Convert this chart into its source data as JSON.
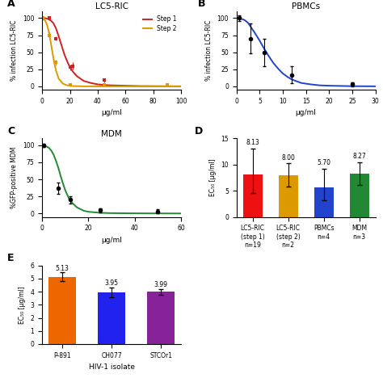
{
  "panel_A": {
    "title": "LC5-RIC",
    "xlabel": "μg/ml",
    "ylabel": "% infection LC5-RIC",
    "xlim": [
      0,
      100
    ],
    "ylim": [
      -5,
      110
    ],
    "xticks": [
      0,
      20,
      40,
      60,
      80,
      100
    ],
    "yticks": [
      0,
      25,
      50,
      75,
      100
    ],
    "step1_color": "#cc2222",
    "step2_color": "#dd9900",
    "step1_data_x": [
      0.5,
      5,
      10,
      20,
      22,
      45,
      90
    ],
    "step1_data_y": [
      100,
      100,
      70,
      28,
      30,
      9,
      2
    ],
    "step1_err": [
      2,
      3,
      3,
      4,
      5,
      3,
      1
    ],
    "step2_data_x": [
      0.5,
      5,
      10,
      20,
      45,
      90
    ],
    "step2_data_y": [
      100,
      75,
      35,
      2,
      2,
      2
    ],
    "step2_err": [
      3,
      5,
      4,
      2,
      1,
      1
    ],
    "curve1_x": [
      0.1,
      2,
      4,
      6,
      8,
      10,
      12,
      14,
      16,
      18,
      20,
      22,
      25,
      30,
      35,
      40,
      45,
      50,
      60,
      70,
      80,
      90,
      100
    ],
    "curve1_y": [
      100,
      100,
      99,
      97,
      93,
      85,
      73,
      60,
      47,
      37,
      28,
      22,
      15,
      8,
      5,
      3,
      2,
      1.5,
      1,
      0.5,
      0.3,
      0.2,
      0.1
    ],
    "curve2_x": [
      0.1,
      1,
      2,
      3,
      4,
      5,
      6,
      7,
      8,
      9,
      10,
      12,
      15,
      18,
      20,
      22,
      25,
      30,
      40,
      50,
      60,
      70,
      80,
      90,
      100
    ],
    "curve2_y": [
      100,
      99,
      97,
      93,
      87,
      78,
      67,
      55,
      43,
      32,
      23,
      11,
      4,
      1.5,
      1,
      0.5,
      0.3,
      0.1,
      0,
      0,
      0,
      0,
      0,
      0,
      0
    ],
    "legend_step1": "Step 1",
    "legend_step2": "Step 2"
  },
  "panel_B": {
    "title": "PBMCs",
    "xlabel": "μg/ml",
    "ylabel": "% infection LC5-RIC",
    "xlim": [
      0,
      30
    ],
    "ylim": [
      -5,
      110
    ],
    "xticks": [
      0,
      5,
      10,
      15,
      20,
      25,
      30
    ],
    "yticks": [
      0,
      25,
      50,
      75,
      100
    ],
    "curve_color": "#2244cc",
    "data_x": [
      0.5,
      3,
      6,
      12,
      25
    ],
    "data_y": [
      100,
      70,
      50,
      17,
      3
    ],
    "data_err": [
      4,
      22,
      20,
      12,
      3
    ],
    "curve_x": [
      0.1,
      0.5,
      1,
      1.5,
      2,
      2.5,
      3,
      4,
      5,
      6,
      7,
      8,
      9,
      10,
      11,
      12,
      14,
      16,
      18,
      20,
      25,
      30
    ],
    "curve_y": [
      100,
      100,
      99,
      98,
      96,
      93,
      88,
      78,
      67,
      55,
      44,
      34,
      26,
      19,
      14,
      10,
      5,
      3,
      1.5,
      1,
      0.3,
      0.1
    ]
  },
  "panel_C": {
    "title": "MDM",
    "xlabel": "μg/ml",
    "ylabel": "%GFP-positive MDM",
    "xlim": [
      0,
      60
    ],
    "ylim": [
      -5,
      110
    ],
    "xticks": [
      0,
      20,
      40,
      60
    ],
    "yticks": [
      0,
      25,
      50,
      75,
      100
    ],
    "curve_color": "#228833",
    "data_x": [
      0.5,
      7,
      12,
      25,
      50
    ],
    "data_y": [
      100,
      37,
      20,
      5,
      3
    ],
    "data_err": [
      2,
      8,
      5,
      3,
      3
    ],
    "curve_x": [
      0.1,
      0.5,
      1,
      2,
      3,
      4,
      5,
      6,
      7,
      8,
      9,
      10,
      12,
      15,
      18,
      20,
      25,
      30,
      40,
      50,
      60
    ],
    "curve_y": [
      100,
      100,
      99,
      98,
      96,
      92,
      86,
      77,
      67,
      55,
      44,
      34,
      19,
      9,
      4,
      2.5,
      1,
      0.5,
      0.2,
      0.1,
      0
    ]
  },
  "panel_D": {
    "ylabel": "EC₅₀ [μg/ml]",
    "ylim": [
      0,
      15
    ],
    "yticks": [
      0,
      5,
      10,
      15
    ],
    "categories": [
      "LC5-RIC\n(step 1)\nn=19",
      "LC5-RIC\n(step 2)\nn=2",
      "PBMCs\nn=4",
      "MDM\nn=3"
    ],
    "values": [
      8.13,
      8.0,
      5.7,
      8.27
    ],
    "errors_up": [
      5.0,
      2.2,
      3.5,
      2.2
    ],
    "errors_down": [
      3.5,
      2.2,
      2.5,
      2.2
    ],
    "colors": [
      "#ee1111",
      "#dd9900",
      "#2244cc",
      "#228833"
    ],
    "labels": [
      "8.13",
      "8.00",
      "5.70",
      "8.27"
    ]
  },
  "panel_E": {
    "ylabel": "EC₅₀ [μg/ml]",
    "xlabel": "HIV-1 isolate",
    "ylim": [
      0,
      6
    ],
    "yticks": [
      0,
      1,
      2,
      3,
      4,
      5,
      6
    ],
    "categories": [
      "P-891",
      "CH077",
      "STCOr1"
    ],
    "values": [
      5.13,
      3.95,
      3.99
    ],
    "errors_up": [
      0.35,
      0.38,
      0.22
    ],
    "errors_down": [
      0.35,
      0.38,
      0.22
    ],
    "colors": [
      "#ee6600",
      "#2222ee",
      "#882299"
    ],
    "labels": [
      "5.13",
      "3.95",
      "3.99"
    ]
  },
  "background_color": "#ffffff"
}
